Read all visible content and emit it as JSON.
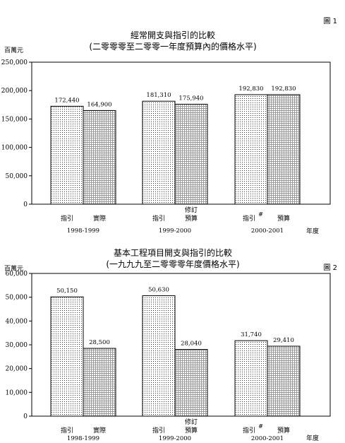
{
  "chart_data": [
    {
      "type": "bar",
      "figure_label": "圖 1",
      "title": "經常開支與指引的比較",
      "subtitle": "(二零零零至二零零一年度預算內的價格水平)",
      "ylabel": "百萬元",
      "xlabel": "年度",
      "ylim": [
        0,
        250000
      ],
      "yticks": [
        "0",
        "50,000",
        "100,000",
        "150,000",
        "200,000",
        "250,000"
      ],
      "ytick_values": [
        0,
        50000,
        100000,
        150000,
        200000,
        250000
      ],
      "grid": false,
      "groups": [
        {
          "name": "1998-1999",
          "bars": [
            {
              "category": "指引",
              "value": 172440,
              "label": "172,440",
              "pattern": "dots"
            },
            {
              "category": "實際",
              "value": 164900,
              "label": "164,900",
              "pattern": "grid"
            }
          ]
        },
        {
          "name": "1999-2000",
          "bars": [
            {
              "category": "指引",
              "value": 181310,
              "label": "181,310",
              "pattern": "dots"
            },
            {
              "category": "修訂\n預算",
              "value": 175940,
              "label": "175,940",
              "pattern": "grid"
            }
          ]
        },
        {
          "name": "2000-2001",
          "bars": [
            {
              "category": "指引#",
              "value": 192830,
              "label": "192,830",
              "pattern": "dots"
            },
            {
              "category": "預算",
              "value": 192830,
              "label": "192,830",
              "pattern": "grid"
            }
          ]
        }
      ]
    },
    {
      "type": "bar",
      "figure_label": "圖 2",
      "title": "基本工程項目開支與指引的比較",
      "subtitle": "(一九九九至二零零零年度價格水平)",
      "ylabel": "百萬元",
      "xlabel": "年度",
      "ylim": [
        0,
        60000
      ],
      "yticks": [
        "0",
        "10,000",
        "20,000",
        "30,000",
        "40,000",
        "50,000",
        "60,000"
      ],
      "ytick_values": [
        0,
        10000,
        20000,
        30000,
        40000,
        50000,
        60000
      ],
      "grid": false,
      "groups": [
        {
          "name": "1998-1999",
          "bars": [
            {
              "category": "指引",
              "value": 50150,
              "label": "50,150",
              "pattern": "dots"
            },
            {
              "category": "實際",
              "value": 28500,
              "label": "28,500",
              "pattern": "grid"
            }
          ]
        },
        {
          "name": "1999-2000",
          "bars": [
            {
              "category": "指引",
              "value": 50630,
              "label": "50,630",
              "pattern": "dots"
            },
            {
              "category": "修訂\n預算",
              "value": 28040,
              "label": "28,040",
              "pattern": "grid"
            }
          ]
        },
        {
          "name": "2000-2001",
          "bars": [
            {
              "category": "指引#",
              "value": 31740,
              "label": "31,740",
              "pattern": "dots"
            },
            {
              "category": "預算",
              "value": 29410,
              "label": "29,410",
              "pattern": "grid"
            }
          ]
        }
      ]
    }
  ]
}
